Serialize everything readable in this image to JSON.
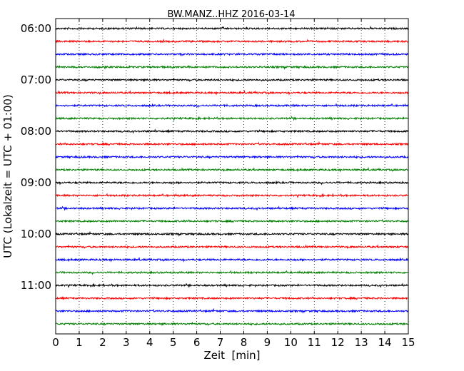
{
  "chart_data": {
    "type": "line",
    "title": "BW.MANZ..HHZ 2016-03-14",
    "xlabel": "Zeit  [min]",
    "ylabel": "UTC (Lokalzeit = UTC + 01:00)",
    "xlim": [
      0,
      15
    ],
    "x_ticks": [
      "0",
      "1",
      "2",
      "3",
      "4",
      "5",
      "6",
      "7",
      "8",
      "9",
      "10",
      "11",
      "12",
      "13",
      "14",
      "15"
    ],
    "y_tick_labels": [
      "06:00",
      "07:00",
      "08:00",
      "09:00",
      "10:00",
      "11:00"
    ],
    "trace_interval_minutes": 15,
    "trace_count": 24,
    "start_time": "06:00",
    "trace_colors": [
      "#000000",
      "#ff0000",
      "#0000ff",
      "#008000"
    ],
    "grid": "vertical dotted at each minute",
    "series": [
      {
        "start": "06:00",
        "color": "#000000"
      },
      {
        "start": "06:15",
        "color": "#ff0000"
      },
      {
        "start": "06:30",
        "color": "#0000ff"
      },
      {
        "start": "06:45",
        "color": "#008000"
      },
      {
        "start": "07:00",
        "color": "#000000"
      },
      {
        "start": "07:15",
        "color": "#ff0000"
      },
      {
        "start": "07:30",
        "color": "#0000ff"
      },
      {
        "start": "07:45",
        "color": "#008000"
      },
      {
        "start": "08:00",
        "color": "#000000"
      },
      {
        "start": "08:15",
        "color": "#ff0000"
      },
      {
        "start": "08:30",
        "color": "#0000ff"
      },
      {
        "start": "08:45",
        "color": "#008000"
      },
      {
        "start": "09:00",
        "color": "#000000"
      },
      {
        "start": "09:15",
        "color": "#ff0000"
      },
      {
        "start": "09:30",
        "color": "#0000ff"
      },
      {
        "start": "09:45",
        "color": "#008000"
      },
      {
        "start": "10:00",
        "color": "#000000"
      },
      {
        "start": "10:15",
        "color": "#ff0000"
      },
      {
        "start": "10:30",
        "color": "#0000ff"
      },
      {
        "start": "10:45",
        "color": "#008000"
      },
      {
        "start": "11:00",
        "color": "#000000"
      },
      {
        "start": "11:15",
        "color": "#ff0000"
      },
      {
        "start": "11:30",
        "color": "#0000ff"
      },
      {
        "start": "11:45",
        "color": "#008000"
      }
    ]
  }
}
